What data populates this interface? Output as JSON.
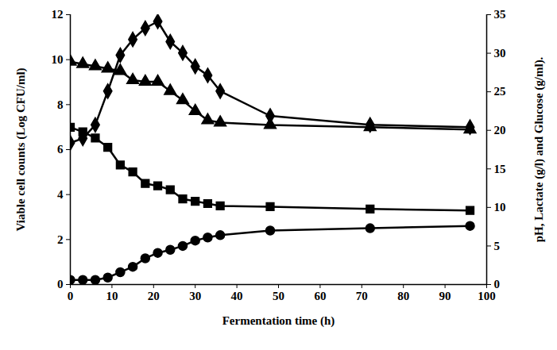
{
  "chart_data": {
    "type": "line",
    "xlabel": "Fermentation time (h)",
    "ylabel": "Viable cell counts (Log CFU/ml)",
    "y2label": "pH, Lactate (g/l) and Glucose (g/ml).",
    "x": [
      0,
      3,
      6,
      9,
      12,
      15,
      18,
      21,
      24,
      27,
      30,
      33,
      36,
      48,
      72,
      96
    ],
    "xlim": [
      0,
      100
    ],
    "xticks": [
      0,
      10,
      20,
      30,
      40,
      50,
      60,
      70,
      80,
      90,
      100
    ],
    "ylim": [
      0,
      12
    ],
    "yticks": [
      0,
      2,
      4,
      6,
      8,
      10,
      12
    ],
    "y2lim": [
      0,
      35
    ],
    "y2ticks": [
      0,
      5,
      10,
      15,
      20,
      25,
      30,
      35
    ],
    "grid": false,
    "series": [
      {
        "color": "#000000",
        "marker": "diamond",
        "values": [
          6.3,
          6.5,
          7.1,
          8.6,
          10.2,
          10.9,
          11.4,
          11.7,
          10.8,
          10.3,
          9.7,
          9.3,
          8.6,
          7.5,
          7.1,
          7.0
        ]
      },
      {
        "color": "#000000",
        "marker": "triangle",
        "axis": "y2",
        "values": [
          28.9,
          28.6,
          28.3,
          28.0,
          27.7,
          26.5,
          26.3,
          26.3,
          25.1,
          23.9,
          22.5,
          21.3,
          21.0,
          20.7,
          20.4,
          20.1
        ]
      },
      {
        "color": "#000000",
        "marker": "square",
        "axis": "y2",
        "values": [
          20.4,
          19.8,
          19.0,
          17.8,
          15.5,
          14.6,
          13.1,
          12.8,
          12.3,
          11.1,
          10.8,
          10.5,
          10.2,
          10.1,
          9.8,
          9.6
        ]
      },
      {
        "color": "#000000",
        "marker": "circle",
        "axis": "y2",
        "values": [
          0.6,
          0.6,
          0.6,
          0.9,
          1.6,
          2.3,
          3.4,
          4.1,
          4.5,
          5.0,
          5.7,
          6.1,
          6.4,
          7.0,
          7.3,
          7.6
        ]
      }
    ]
  }
}
